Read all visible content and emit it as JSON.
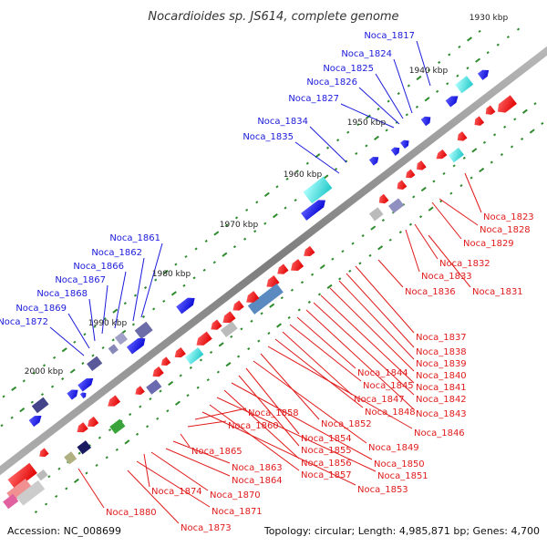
{
  "title": "Nocardioides sp. JS614, complete genome",
  "footer": {
    "accession": "Accession: NC_008699",
    "summary": "Topology: circular; Length: 4,985,871 bp; Genes: 4,700"
  },
  "colors": {
    "forward_label": "#1a1adb",
    "reverse_label": "#e11b1b",
    "tick": "#2e8b2e",
    "backbone": "#8c8c8c"
  },
  "kbp_ticks": [
    "1930 kbp",
    "1940 kbp",
    "1950 kbp",
    "1960 kbp",
    "1970 kbp",
    "1980 kbp",
    "1990 kbp",
    "2000 kbp"
  ],
  "forward_genes": [
    "Noca_1817",
    "Noca_1824",
    "Noca_1825",
    "Noca_1826",
    "Noca_1827",
    "Noca_1834",
    "Noca_1835",
    "Noca_1861",
    "Noca_1862",
    "Noca_1866",
    "Noca_1867",
    "Noca_1868",
    "Noca_1869",
    "Noca_1872"
  ],
  "reverse_genes": [
    "Noca_1823",
    "Noca_1828",
    "Noca_1829",
    "Noca_1832",
    "Noca_1833",
    "Noca_1836",
    "Noca_1831",
    "Noca_1837",
    "Noca_1838",
    "Noca_1839",
    "Noca_1840",
    "Noca_1841",
    "Noca_1842",
    "Noca_1843",
    "Noca_1844",
    "Noca_1845",
    "Noca_1847",
    "Noca_1848",
    "Noca_1846",
    "Noca_1852",
    "Noca_1849",
    "Noca_1854",
    "Noca_1855",
    "Noca_1850",
    "Noca_1856",
    "Noca_1851",
    "Noca_1857",
    "Noca_1853",
    "Noca_1858",
    "Noca_1860",
    "Noca_1865",
    "Noca_1863",
    "Noca_1864",
    "Noca_1874",
    "Noca_1870",
    "Noca_1871",
    "Noca_1880",
    "Noca_1873"
  ]
}
